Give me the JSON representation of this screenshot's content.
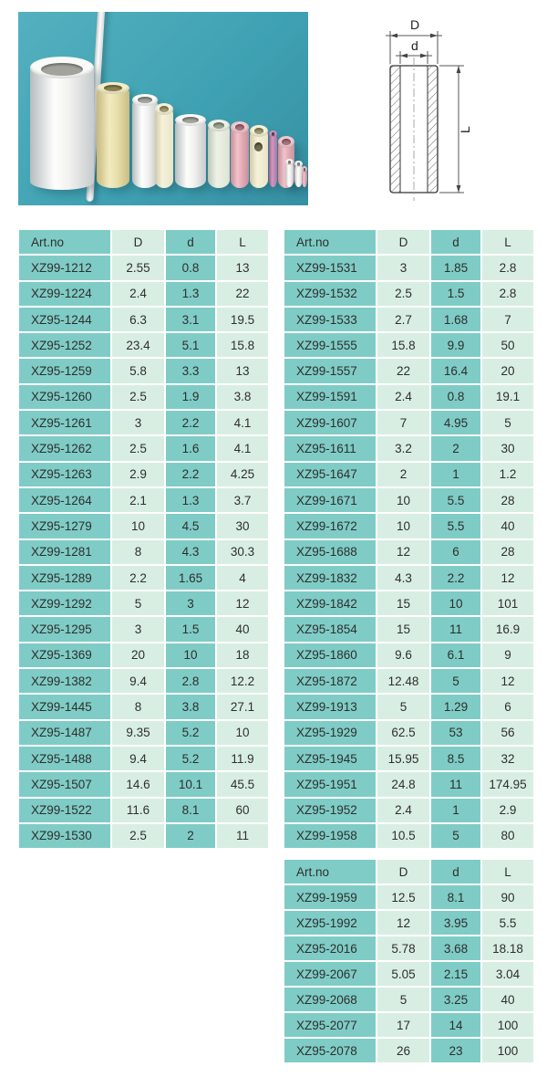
{
  "photo": {
    "description": "ceramic insulating tubes of descending sizes standing on teal background",
    "background_color": "#3fa2b3",
    "tube_colors": {
      "white": "#f1f1ee",
      "cream": "#ece4b4",
      "ivory": "#f0ecd4",
      "green_white": "#e9efe2",
      "pink": "#e8aeb8",
      "mauve": "#bb7cab"
    }
  },
  "diagram": {
    "description": "tube cross-section dimension drawing",
    "labels": {
      "D": "D",
      "d": "d",
      "L": "L"
    }
  },
  "tables": [
    {
      "headers": [
        "Art.no",
        "D",
        "d",
        "L"
      ],
      "rows": [
        [
          "XZ99-1212",
          "2.55",
          "0.8",
          "13"
        ],
        [
          "XZ99-1224",
          "2.4",
          "1.3",
          "22"
        ],
        [
          "XZ95-1244",
          "6.3",
          "3.1",
          "19.5"
        ],
        [
          "XZ95-1252",
          "23.4",
          "5.1",
          "15.8"
        ],
        [
          "XZ95-1259",
          "5.8",
          "3.3",
          "13"
        ],
        [
          "XZ95-1260",
          "2.5",
          "1.9",
          "3.8"
        ],
        [
          "XZ95-1261",
          "3",
          "2.2",
          "4.1"
        ],
        [
          "XZ95-1262",
          "2.5",
          "1.6",
          "4.1"
        ],
        [
          "XZ95-1263",
          "2.9",
          "2.2",
          "4.25"
        ],
        [
          "XZ95-1264",
          "2.1",
          "1.3",
          "3.7"
        ],
        [
          "XZ95-1279",
          "10",
          "4.5",
          "30"
        ],
        [
          "XZ99-1281",
          "8",
          "4.3",
          "30.3"
        ],
        [
          "XZ95-1289",
          "2.2",
          "1.65",
          "4"
        ],
        [
          "XZ99-1292",
          "5",
          "3",
          "12"
        ],
        [
          "XZ95-1295",
          "3",
          "1.5",
          "40"
        ],
        [
          "XZ95-1369",
          "20",
          "10",
          "18"
        ],
        [
          "XZ99-1382",
          "9.4",
          "2.8",
          "12.2"
        ],
        [
          "XZ99-1445",
          "8",
          "3.8",
          "27.1"
        ],
        [
          "XZ95-1487",
          "9.35",
          "5.2",
          "10"
        ],
        [
          "XZ95-1488",
          "9.4",
          "5.2",
          "11.9"
        ],
        [
          "XZ95-1507",
          "14.6",
          "10.1",
          "45.5"
        ],
        [
          "XZ99-1522",
          "11.6",
          "8.1",
          "60"
        ],
        [
          "XZ99-1530",
          "2.5",
          "2",
          "11"
        ]
      ]
    },
    {
      "headers": [
        "Art.no",
        "D",
        "d",
        "L"
      ],
      "rows": [
        [
          "XZ99-1531",
          "3",
          "1.85",
          "2.8"
        ],
        [
          "XZ99-1532",
          "2.5",
          "1.5",
          "2.8"
        ],
        [
          "XZ99-1533",
          "2.7",
          "1.68",
          "7"
        ],
        [
          "XZ99-1555",
          "15.8",
          "9.9",
          "50"
        ],
        [
          "XZ99-1557",
          "22",
          "16.4",
          "20"
        ],
        [
          "XZ99-1591",
          "2.4",
          "0.8",
          "19.1"
        ],
        [
          "XZ99-1607",
          "7",
          "4.95",
          "5"
        ],
        [
          "XZ95-1611",
          "3.2",
          "2",
          "30"
        ],
        [
          "XZ95-1647",
          "2",
          "1",
          "1.2"
        ],
        [
          "XZ99-1671",
          "10",
          "5.5",
          "28"
        ],
        [
          "XZ99-1672",
          "10",
          "5.5",
          "40"
        ],
        [
          "XZ95-1688",
          "12",
          "6",
          "28"
        ],
        [
          "XZ99-1832",
          "4.3",
          "2.2",
          "12"
        ],
        [
          "XZ99-1842",
          "15",
          "10",
          "101"
        ],
        [
          "XZ95-1854",
          "15",
          "11",
          "16.9"
        ],
        [
          "XZ95-1860",
          "9.6",
          "6.1",
          "9"
        ],
        [
          "XZ95-1872",
          "12.48",
          "5",
          "12"
        ],
        [
          "XZ99-1913",
          "5",
          "1.29",
          "6"
        ],
        [
          "XZ95-1929",
          "62.5",
          "53",
          "56"
        ],
        [
          "XZ95-1945",
          "15.95",
          "8.5",
          "32"
        ],
        [
          "XZ95-1951",
          "24.8",
          "11",
          "174.95"
        ],
        [
          "XZ95-1952",
          "2.4",
          "1",
          "2.9"
        ],
        [
          "XZ99-1958",
          "10.5",
          "5",
          "80"
        ]
      ]
    },
    {
      "headers": [
        "Art.no",
        "D",
        "d",
        "L"
      ],
      "rows": [
        [
          "XZ99-1959",
          "12.5",
          "8.1",
          "90"
        ],
        [
          "XZ95-1992",
          "12",
          "3.95",
          "5.5"
        ],
        [
          "XZ95-2016",
          "5.78",
          "3.68",
          "18.18"
        ],
        [
          "XZ99-2067",
          "5.05",
          "2.15",
          "3.04"
        ],
        [
          "XZ99-2068",
          "5",
          "3.25",
          "40"
        ],
        [
          "XZ95-2077",
          "17",
          "14",
          "100"
        ],
        [
          "XZ95-2078",
          "26",
          "23",
          "100"
        ]
      ]
    }
  ]
}
